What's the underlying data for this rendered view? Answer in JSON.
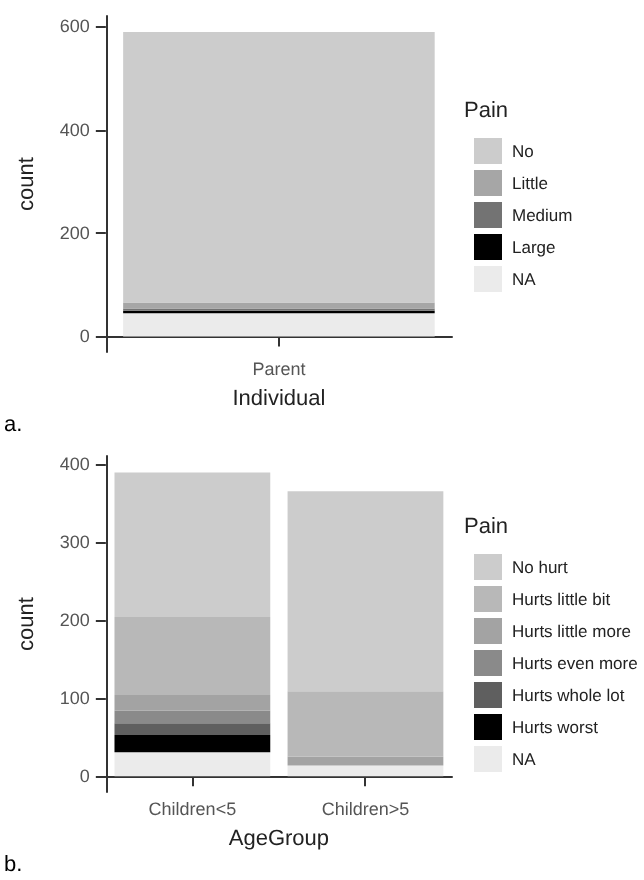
{
  "chart_data": [
    {
      "type": "bar",
      "stacked": true,
      "xlabel": "Individual",
      "ylabel": "count",
      "legend_title": "Pain",
      "annotations": [
        "a."
      ],
      "categories": [
        "Parent"
      ],
      "ylim": [
        -30,
        620
      ],
      "yticks": [
        0,
        200,
        400,
        600
      ],
      "grid": false,
      "legend": "right",
      "series": [
        {
          "name": "NA",
          "color": "#ebebeb",
          "values": [
            45
          ]
        },
        {
          "name": "Large",
          "color": "#000000",
          "values": [
            5
          ]
        },
        {
          "name": "Medium",
          "color": "#737373",
          "values": [
            4
          ]
        },
        {
          "name": "Little",
          "color": "#a6a6a6",
          "values": [
            12
          ]
        },
        {
          "name": "No",
          "color": "#cccccc",
          "values": [
            523
          ]
        }
      ]
    },
    {
      "type": "bar",
      "stacked": true,
      "xlabel": "AgeGroup",
      "ylabel": "count",
      "legend_title": "Pain",
      "annotations": [
        "b."
      ],
      "categories": [
        "Children<5",
        "Children>5"
      ],
      "ylim": [
        -20,
        410
      ],
      "yticks": [
        0,
        100,
        200,
        300,
        400
      ],
      "grid": false,
      "legend": "right",
      "series": [
        {
          "name": "NA",
          "color": "#ebebeb",
          "values": [
            31,
            14
          ]
        },
        {
          "name": "Hurts worst",
          "color": "#000000",
          "values": [
            22,
            0
          ]
        },
        {
          "name": "Hurts whole lot",
          "color": "#5f5f5f",
          "values": [
            15,
            0
          ]
        },
        {
          "name": "Hurts even more",
          "color": "#8a8a8a",
          "values": [
            16,
            0
          ]
        },
        {
          "name": "Hurts little more",
          "color": "#a3a3a3",
          "values": [
            20,
            11
          ]
        },
        {
          "name": "Hurts little bit",
          "color": "#b8b8b8",
          "values": [
            100,
            84
          ]
        },
        {
          "name": "No hurt",
          "color": "#cccccc",
          "values": [
            185,
            256
          ]
        }
      ]
    }
  ]
}
